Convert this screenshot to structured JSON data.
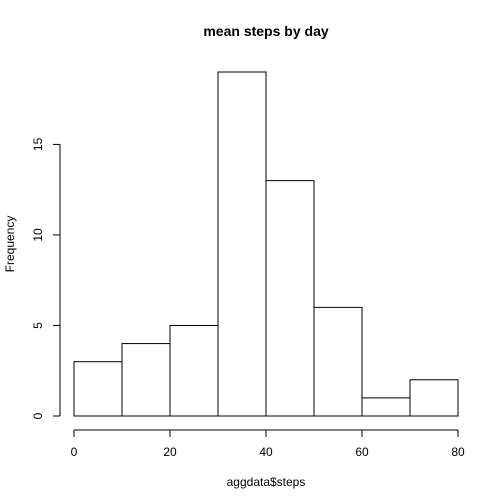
{
  "chart_data": {
    "type": "bar",
    "title": "mean steps by day",
    "xlabel": "aggdata$steps",
    "ylabel": "Frequency",
    "bins": [
      {
        "from": 0,
        "to": 10,
        "count": 3
      },
      {
        "from": 10,
        "to": 20,
        "count": 4
      },
      {
        "from": 20,
        "to": 30,
        "count": 5
      },
      {
        "from": 30,
        "to": 40,
        "count": 19
      },
      {
        "from": 40,
        "to": 50,
        "count": 13
      },
      {
        "from": 50,
        "to": 60,
        "count": 6
      },
      {
        "from": 60,
        "to": 70,
        "count": 1
      },
      {
        "from": 70,
        "to": 80,
        "count": 2
      }
    ],
    "xlim": [
      0,
      80
    ],
    "ylim": [
      0,
      19
    ],
    "xticks": [
      0,
      20,
      40,
      60,
      80
    ],
    "yticks": [
      0,
      5,
      10,
      15
    ],
    "grid": false,
    "bar_fill": "#ffffff",
    "bar_stroke": "#000000"
  }
}
